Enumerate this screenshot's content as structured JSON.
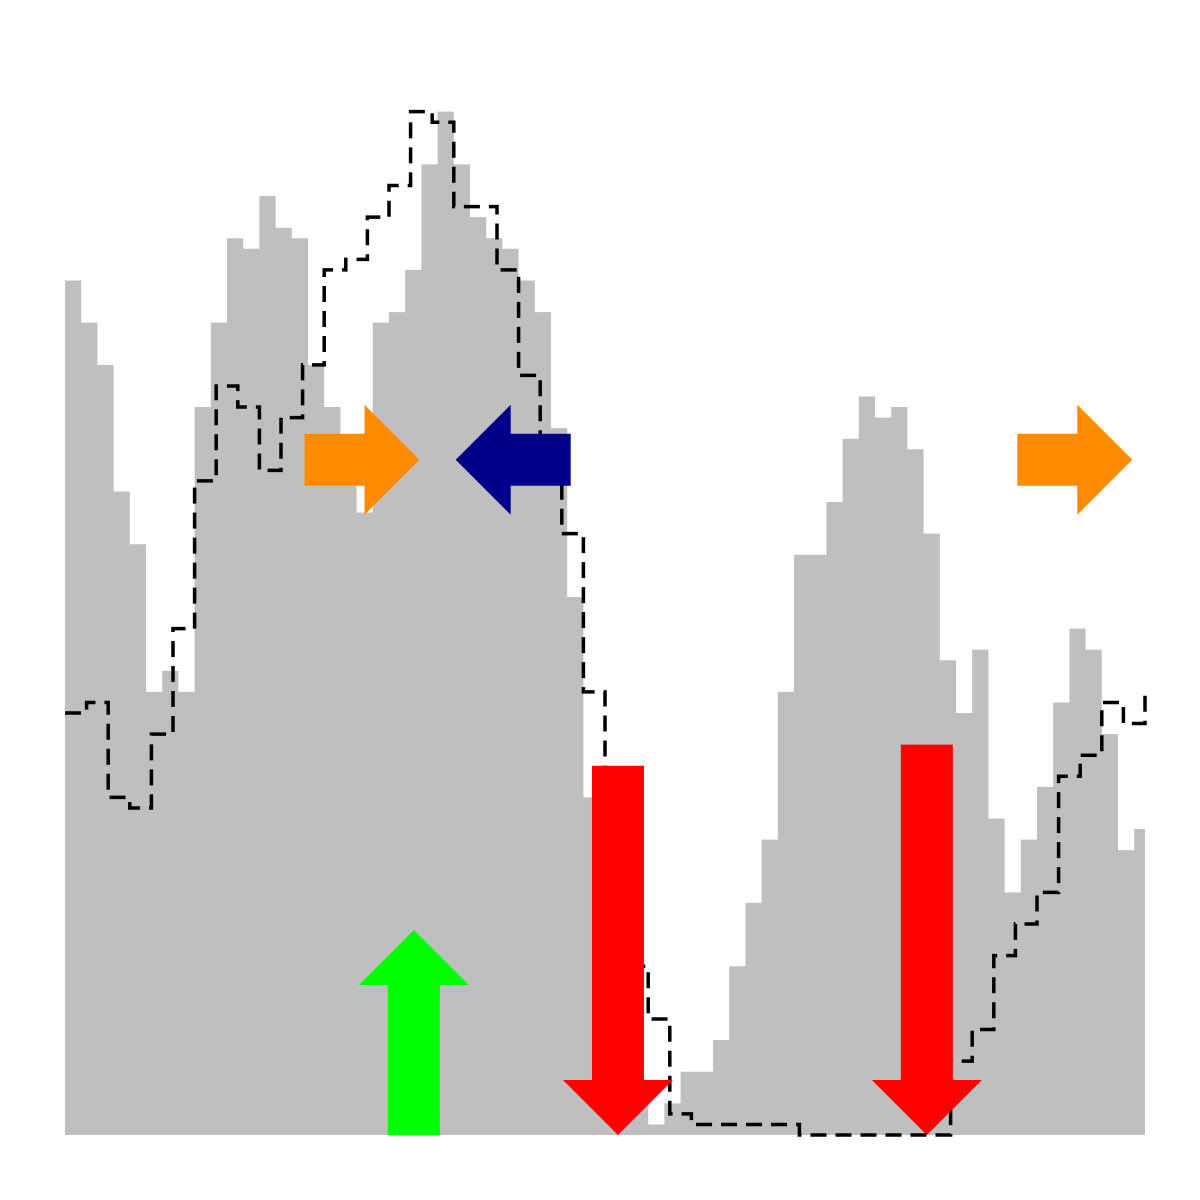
{
  "chart_data": {
    "type": "area",
    "title": "",
    "xlabel": "",
    "ylabel": "",
    "grid": false,
    "legend": "none",
    "xlim": [
      0,
      100
    ],
    "ylim": [
      0,
      100
    ],
    "series": [
      {
        "kind": "area",
        "color": "#bfbfbf",
        "x": [
          0,
          1.5,
          3,
          4.5,
          6,
          7.5,
          9,
          10.5,
          12,
          13.5,
          15,
          16.5,
          18,
          19.5,
          21,
          22.5,
          24,
          25.5,
          27,
          28.5,
          30,
          31.5,
          33,
          34.5,
          36,
          37.5,
          39,
          40.5,
          42,
          43.5,
          45,
          46.5,
          48,
          49.5,
          51,
          52.5,
          54,
          55.5,
          57,
          58.5,
          60,
          61.5,
          63,
          64.5,
          66,
          67.5,
          69,
          70.5,
          72,
          73.5,
          75,
          76.5,
          78,
          79.5,
          81,
          82.5,
          84,
          85.5,
          87,
          88.5,
          90,
          91.5,
          93,
          94.5,
          96,
          97.5,
          99,
          100
        ],
        "y": [
          81,
          77,
          73,
          61,
          56,
          42,
          44,
          42,
          69,
          77,
          85,
          84,
          89,
          86,
          85,
          73,
          69,
          66,
          59,
          77,
          78,
          82,
          92,
          97,
          92,
          87,
          85,
          84,
          81,
          78,
          67,
          51,
          32,
          24,
          15,
          5,
          1,
          3,
          6,
          6,
          9,
          16,
          22,
          28,
          42,
          55,
          55,
          60,
          66,
          70,
          68,
          69,
          65,
          57,
          45,
          40,
          46,
          30,
          23,
          28,
          33,
          41,
          48,
          46,
          38,
          27,
          29,
          24
        ]
      },
      {
        "kind": "line",
        "style": "dashed",
        "color": "#000000",
        "x": [
          0,
          2,
          4,
          6,
          8,
          10,
          12,
          14,
          16,
          18,
          20,
          22,
          24,
          26,
          28,
          30,
          32,
          34,
          36,
          38,
          40,
          42,
          44,
          46,
          48,
          50,
          52,
          54,
          56,
          58,
          60,
          62,
          64,
          66,
          68,
          70,
          72,
          74,
          76,
          78,
          80,
          82,
          84,
          86,
          88,
          90,
          92,
          94,
          96,
          98,
          100
        ],
        "y": [
          40,
          41,
          32,
          31,
          38,
          48,
          62,
          71,
          69,
          63,
          68,
          73,
          82,
          83,
          87,
          90,
          97,
          96,
          88,
          88,
          82,
          72,
          63,
          57,
          42,
          32,
          16,
          11,
          2,
          1,
          1,
          1,
          1,
          1,
          0,
          0,
          0,
          0,
          0,
          0,
          0,
          7,
          10,
          17,
          20,
          23,
          34,
          36,
          41,
          39,
          42
        ]
      }
    ],
    "annotations": [
      {
        "shape": "arrow",
        "direction": "right",
        "color": "#ff8c00",
        "x": 27.5,
        "y": 64
      },
      {
        "shape": "arrow",
        "direction": "left",
        "color": "#00008b",
        "x": 41.5,
        "y": 64
      },
      {
        "shape": "arrow",
        "direction": "right",
        "color": "#ff8c00",
        "x": 93.5,
        "y": 64
      },
      {
        "shape": "arrow",
        "direction": "up",
        "color": "#00ff00",
        "x": 32.3,
        "y": 19
      },
      {
        "shape": "arrow",
        "direction": "down",
        "color": "#ff0000",
        "x": 51.2,
        "y": 35
      },
      {
        "shape": "arrow",
        "direction": "down",
        "color": "#ff0000",
        "x": 79.8,
        "y": 37
      }
    ]
  }
}
